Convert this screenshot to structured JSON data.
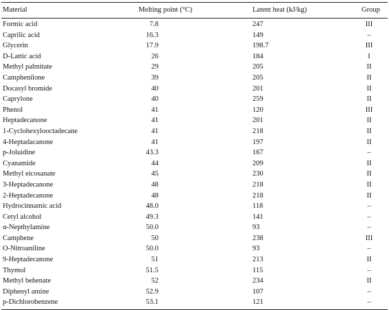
{
  "table": {
    "headers": {
      "material": "Material",
      "melting_point": "Melting point (°C)",
      "latent_heat": "Latent heat (kJ/kg)",
      "group": "Group"
    },
    "rows": [
      {
        "material": "Formic acid",
        "melting_point": "7.8",
        "latent_heat": "247",
        "group": "III"
      },
      {
        "material": "Caprilic acid",
        "melting_point": "16.3",
        "latent_heat": "149",
        "group": "–"
      },
      {
        "material": "Glycerin",
        "melting_point": "17.9",
        "latent_heat": "198.7",
        "group": "III"
      },
      {
        "material": "D-Lattic acid",
        "melting_point": "26",
        "latent_heat": "184",
        "group": "I"
      },
      {
        "material": "Methyl palmitate",
        "melting_point": "29",
        "latent_heat": "205",
        "group": "II"
      },
      {
        "material": "Camphenilone",
        "melting_point": "39",
        "latent_heat": "205",
        "group": "II"
      },
      {
        "material": "Docasyl bromide",
        "melting_point": "40",
        "latent_heat": "201",
        "group": "II"
      },
      {
        "material": "Caprylone",
        "melting_point": "40",
        "latent_heat": "259",
        "group": "II"
      },
      {
        "material": "Phenol",
        "melting_point": "41",
        "latent_heat": "120",
        "group": "III"
      },
      {
        "material": "Heptadecanone",
        "melting_point": "41",
        "latent_heat": "201",
        "group": "II"
      },
      {
        "material": "1-Cyclohexylooctadecane",
        "melting_point": "41",
        "latent_heat": "218",
        "group": "II"
      },
      {
        "material": "4-Heptadacanone",
        "melting_point": "41",
        "latent_heat": "197",
        "group": "II"
      },
      {
        "material": "p-Joluidine",
        "melting_point": "43.3",
        "latent_heat": "167",
        "group": "–"
      },
      {
        "material": "Cyanamide",
        "melting_point": "44",
        "latent_heat": "209",
        "group": "II"
      },
      {
        "material": "Methyl eicosanate",
        "melting_point": "45",
        "latent_heat": "230",
        "group": "II"
      },
      {
        "material": "3-Heptadecanone",
        "melting_point": "48",
        "latent_heat": "218",
        "group": "II"
      },
      {
        "material": "2-Heptadecanone",
        "melting_point": "48",
        "latent_heat": "218",
        "group": "II"
      },
      {
        "material": "Hydrocinnamic acid",
        "melting_point": "48.0",
        "latent_heat": "118",
        "group": "–"
      },
      {
        "material": "Cetyl alcohol",
        "melting_point": "49.3",
        "latent_heat": "141",
        "group": "–"
      },
      {
        "material": "α-Nepthylamine",
        "melting_point": "50.0",
        "latent_heat": "93",
        "group": "–"
      },
      {
        "material": "Camphene",
        "melting_point": "50",
        "latent_heat": "238",
        "group": "III"
      },
      {
        "material": "O-Nitroaniline",
        "melting_point": "50.0",
        "latent_heat": "93",
        "group": "–"
      },
      {
        "material": "9-Heptadecanone",
        "melting_point": "51",
        "latent_heat": "213",
        "group": "II"
      },
      {
        "material": "Thymol",
        "melting_point": "51.5",
        "latent_heat": "115",
        "group": "–"
      },
      {
        "material": "Methyl behenate",
        "melting_point": "52",
        "latent_heat": "234",
        "group": "II"
      },
      {
        "material": "Diphenyl amine",
        "melting_point": "52.9",
        "latent_heat": "107",
        "group": "–"
      },
      {
        "material": "p-Dichlorobenzene",
        "melting_point": "53.1",
        "latent_heat": "121",
        "group": "–"
      }
    ]
  }
}
